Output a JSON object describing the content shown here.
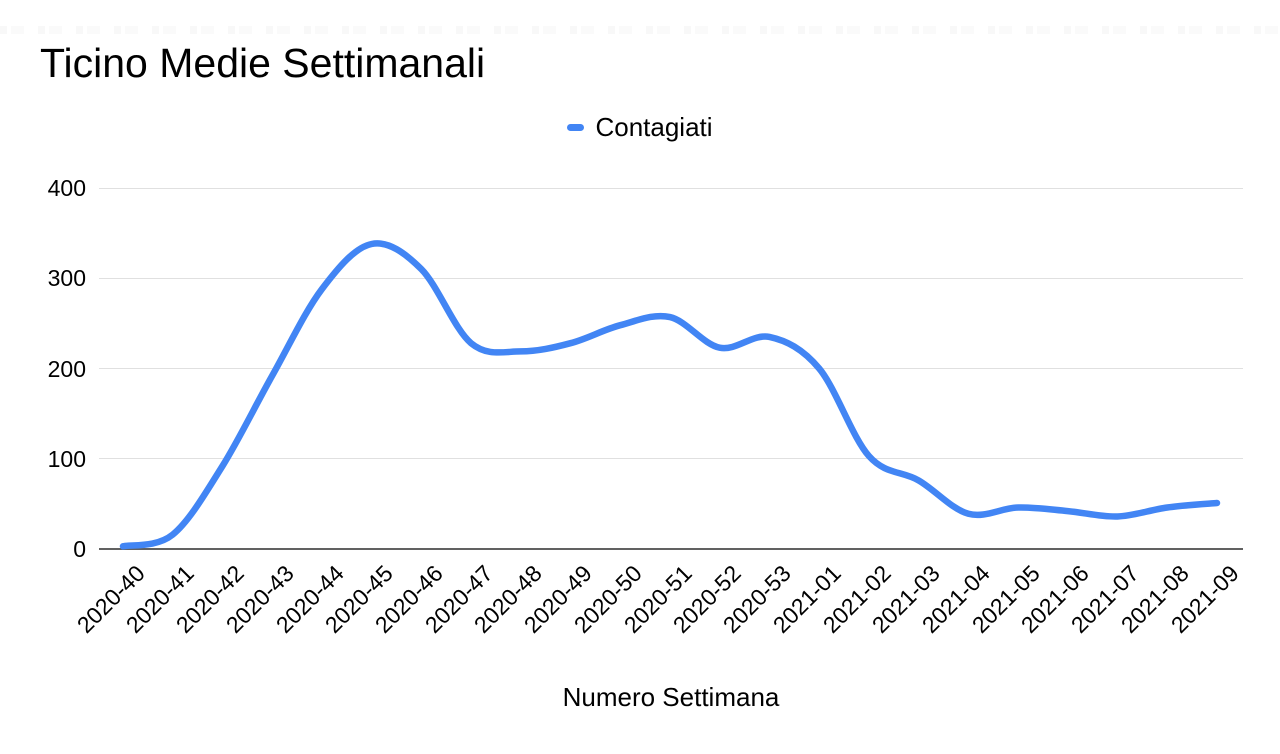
{
  "title": "Ticino Medie Settimanali",
  "legend": {
    "items": [
      {
        "label": "Contagiati",
        "color": "#4285F4"
      }
    ]
  },
  "axis": {
    "x_title": "Numero Settimana",
    "y_tick_labels": [
      "0",
      "100",
      "200",
      "300",
      "400"
    ]
  },
  "colors": {
    "series": "#4285F4",
    "gridline": "#e0e0e0",
    "axis_line": "#616161",
    "text": "#000000",
    "background": "#ffffff"
  },
  "chart_data": {
    "type": "line",
    "smooth": true,
    "title": "Ticino Medie Settimanali",
    "xlabel": "Numero Settimana",
    "ylabel": "",
    "legend_position": "top",
    "grid": "horizontal-only",
    "ylim": [
      0,
      400
    ],
    "y_ticks": [
      0,
      100,
      200,
      300,
      400
    ],
    "categories": [
      "2020-40",
      "2020-41",
      "2020-42",
      "2020-43",
      "2020-44",
      "2020-45",
      "2020-46",
      "2020-47",
      "2020-48",
      "2020-49",
      "2020-50",
      "2020-51",
      "2020-52",
      "2020-53",
      "2021-01",
      "2021-02",
      "2021-03",
      "2021-04",
      "2021-05",
      "2021-06",
      "2021-07",
      "2021-08",
      "2021-09"
    ],
    "series": [
      {
        "name": "Contagiati",
        "color": "#4285F4",
        "values": [
          3,
          16,
          92,
          192,
          288,
          338,
          310,
          228,
          219,
          228,
          248,
          257,
          223,
          235,
          200,
          103,
          76,
          39,
          46,
          42,
          36,
          46,
          51
        ]
      }
    ]
  }
}
